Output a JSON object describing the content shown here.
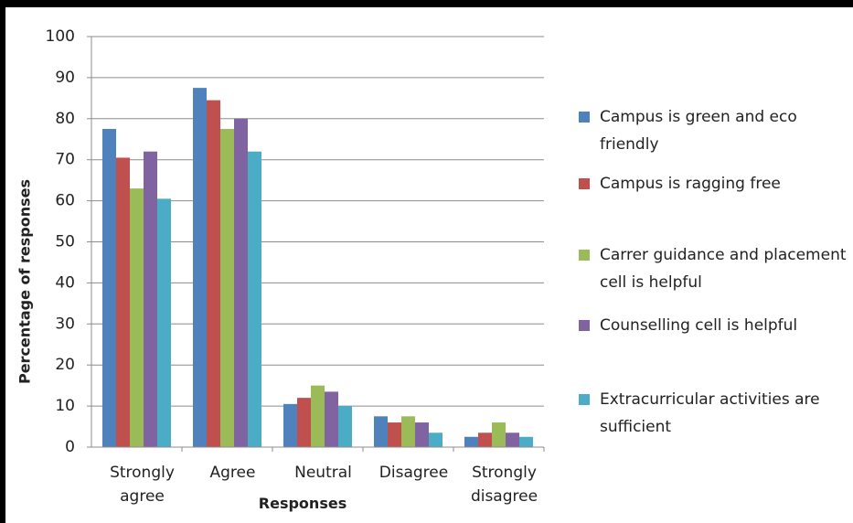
{
  "chart_data": {
    "type": "bar",
    "x_label": "Responses",
    "y_label": "Percentage of responses",
    "categories": [
      "Strongly agree",
      "Agree",
      "Neutral",
      "Disagree",
      "Strongly disagree"
    ],
    "series": [
      {
        "name": "Campus is green and eco friendly",
        "color": "#4f81bd",
        "values": [
          77.5,
          87.5,
          10.5,
          7.5,
          2.5
        ]
      },
      {
        "name": "Campus is ragging free",
        "color": "#c0504d",
        "values": [
          70.5,
          84.5,
          12,
          6,
          3.5
        ]
      },
      {
        "name": "Carrer guidance and placement cell is helpful",
        "color": "#9bbb59",
        "values": [
          63,
          77.5,
          15,
          7.5,
          6
        ]
      },
      {
        "name": "Counselling cell is helpful",
        "color": "#8064a2",
        "values": [
          72,
          80,
          13.5,
          6,
          3.5
        ]
      },
      {
        "name": "Extracurricular activities are sufficient",
        "color": "#4bacc6",
        "values": [
          60.5,
          72,
          10,
          3.5,
          2.5
        ]
      }
    ],
    "ylim": [
      0,
      100
    ],
    "yticks": [
      0,
      10,
      20,
      30,
      40,
      50,
      60,
      70,
      80,
      90,
      100
    ],
    "grid": true,
    "legend": "right"
  }
}
